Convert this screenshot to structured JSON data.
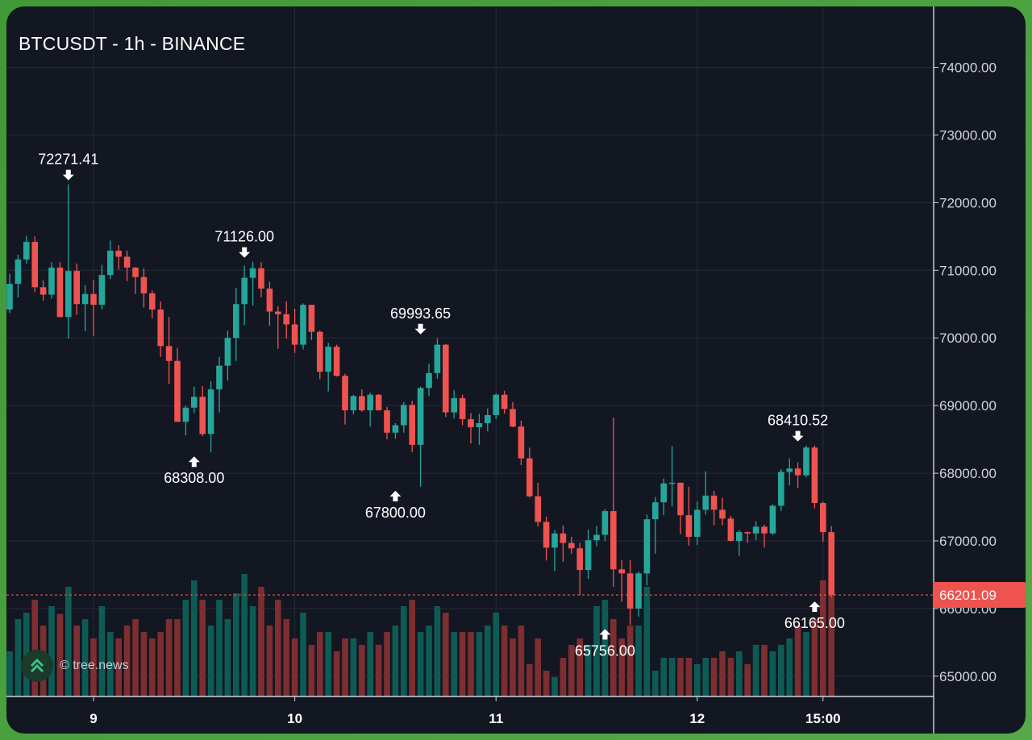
{
  "title": "BTCUSDT - 1h - BINANCE",
  "watermark": "© tree.news",
  "colors": {
    "background": "#131722",
    "grid": "#262b38",
    "up": "#26a69a",
    "down": "#ef5350",
    "up_volume": "#0e5b55",
    "down_volume": "#7c2e30",
    "price_line": "#ef5350",
    "text": "#ffffff",
    "axis_text": "#d1d4dc"
  },
  "chart_data": {
    "type": "candlestick",
    "interval": "1h",
    "ylim": [
      64200,
      74900
    ],
    "y_ticks": [
      "74000.00",
      "73000.00",
      "72000.00",
      "71000.00",
      "70000.00",
      "69000.00",
      "68000.00",
      "67000.00",
      "66000.00",
      "65000.00"
    ],
    "x_ticks": [
      {
        "label": "9",
        "index": 10
      },
      {
        "label": "10",
        "index": 34
      },
      {
        "label": "11",
        "index": 58
      },
      {
        "label": "12",
        "index": 82
      },
      {
        "label": "15:00",
        "index": 97
      }
    ],
    "last_price": "66201.09",
    "annotations": [
      {
        "label": "72271.41",
        "index": 7,
        "price": 72271.41,
        "dir": "high"
      },
      {
        "label": "71126.00",
        "index": 28,
        "price": 71126.0,
        "dir": "high"
      },
      {
        "label": "69993.65",
        "index": 49,
        "price": 69993.65,
        "dir": "high"
      },
      {
        "label": "68410.52",
        "index": 94,
        "price": 68410.52,
        "dir": "high"
      },
      {
        "label": "68308.00",
        "index": 22,
        "price": 68308.0,
        "dir": "low"
      },
      {
        "label": "67800.00",
        "index": 46,
        "price": 67800.0,
        "dir": "low"
      },
      {
        "label": "65756.00",
        "index": 71,
        "price": 65756.0,
        "dir": "low"
      },
      {
        "label": "66165.00",
        "index": 96,
        "price": 66165.0,
        "dir": "low"
      }
    ],
    "ohlc": [
      [
        70420,
        70950,
        70370,
        70800
      ],
      [
        70800,
        71230,
        70600,
        71160
      ],
      [
        71160,
        71510,
        71100,
        71420
      ],
      [
        71420,
        71500,
        70680,
        70750
      ],
      [
        70750,
        70850,
        70550,
        70640
      ],
      [
        70640,
        71120,
        70580,
        71040
      ],
      [
        71040,
        71120,
        70300,
        70310
      ],
      [
        70310,
        72271,
        69990,
        70990
      ],
      [
        70990,
        71100,
        70340,
        70500
      ],
      [
        70500,
        70780,
        70100,
        70650
      ],
      [
        70650,
        70860,
        70030,
        70490
      ],
      [
        70490,
        71080,
        70420,
        70930
      ],
      [
        70930,
        71440,
        70870,
        71290
      ],
      [
        71290,
        71370,
        71010,
        71200
      ],
      [
        71200,
        71290,
        70840,
        71040
      ],
      [
        71040,
        71050,
        70650,
        70900
      ],
      [
        70900,
        71030,
        70450,
        70660
      ],
      [
        70660,
        70700,
        70290,
        70420
      ],
      [
        70420,
        70540,
        69720,
        69880
      ],
      [
        69880,
        70310,
        69320,
        69660
      ],
      [
        69660,
        69850,
        68790,
        68760
      ],
      [
        68760,
        69000,
        68560,
        68970
      ],
      [
        68970,
        69280,
        68890,
        69130
      ],
      [
        69130,
        69290,
        68550,
        68580
      ],
      [
        68580,
        69360,
        68308,
        69240
      ],
      [
        69240,
        69720,
        68900,
        69590
      ],
      [
        69590,
        70110,
        69370,
        70000
      ],
      [
        70000,
        70740,
        69660,
        70500
      ],
      [
        70500,
        71070,
        70190,
        70890
      ],
      [
        70890,
        71126,
        70480,
        71030
      ],
      [
        71030,
        71120,
        70600,
        70730
      ],
      [
        70730,
        70830,
        70180,
        70390
      ],
      [
        70390,
        70470,
        69840,
        70350
      ],
      [
        70350,
        70540,
        69990,
        70200
      ],
      [
        70200,
        70430,
        69780,
        69900
      ],
      [
        69900,
        70510,
        69830,
        70490
      ],
      [
        70490,
        70490,
        69970,
        70090
      ],
      [
        70090,
        70110,
        69390,
        69500
      ],
      [
        69500,
        69930,
        69210,
        69870
      ],
      [
        69870,
        69900,
        69430,
        69440
      ],
      [
        69440,
        69470,
        68720,
        68930
      ],
      [
        68930,
        69160,
        68870,
        69140
      ],
      [
        69140,
        69240,
        68910,
        68930
      ],
      [
        68930,
        69190,
        68690,
        69160
      ],
      [
        69160,
        69170,
        68930,
        68930
      ],
      [
        68930,
        68980,
        68500,
        68600
      ],
      [
        68600,
        68740,
        68510,
        68710
      ],
      [
        68710,
        69050,
        68600,
        69010
      ],
      [
        69010,
        69070,
        68310,
        68420
      ],
      [
        68420,
        69280,
        67800,
        69260
      ],
      [
        69260,
        69620,
        69140,
        69480
      ],
      [
        69480,
        69994,
        69400,
        69900
      ],
      [
        69900,
        69910,
        68830,
        68900
      ],
      [
        68900,
        69230,
        68810,
        69110
      ],
      [
        69110,
        69160,
        68710,
        68800
      ],
      [
        68800,
        68890,
        68440,
        68680
      ],
      [
        68680,
        68880,
        68420,
        68740
      ],
      [
        68740,
        68960,
        68620,
        68860
      ],
      [
        68860,
        69180,
        68800,
        69160
      ],
      [
        69160,
        69220,
        68880,
        68950
      ],
      [
        68950,
        69050,
        68680,
        68690
      ],
      [
        68690,
        68780,
        68120,
        68220
      ],
      [
        68220,
        68380,
        67640,
        67660
      ],
      [
        67660,
        67860,
        67210,
        67280
      ],
      [
        67280,
        67360,
        66710,
        66900
      ],
      [
        66900,
        67160,
        66550,
        67110
      ],
      [
        67110,
        67230,
        66690,
        66970
      ],
      [
        66970,
        67060,
        66810,
        66890
      ],
      [
        66890,
        66970,
        66200,
        66570
      ],
      [
        66570,
        67170,
        66440,
        67010
      ],
      [
        67010,
        67220,
        66920,
        67090
      ],
      [
        67090,
        67470,
        67000,
        67440
      ],
      [
        67440,
        68820,
        66320,
        66580
      ],
      [
        66580,
        66720,
        66100,
        66520
      ],
      [
        66520,
        66720,
        65756,
        66000
      ],
      [
        66000,
        66550,
        65880,
        66520
      ],
      [
        66520,
        67390,
        66340,
        67320
      ],
      [
        67320,
        67650,
        66810,
        67570
      ],
      [
        67570,
        67920,
        67380,
        67850
      ],
      [
        67850,
        68400,
        67510,
        67860
      ],
      [
        67860,
        67860,
        67100,
        67380
      ],
      [
        67380,
        67800,
        66930,
        67060
      ],
      [
        67060,
        67580,
        66940,
        67460
      ],
      [
        67460,
        68030,
        67390,
        67670
      ],
      [
        67670,
        67740,
        67230,
        67460
      ],
      [
        67460,
        67640,
        67230,
        67330
      ],
      [
        67330,
        67370,
        66990,
        67000
      ],
      [
        67000,
        67160,
        66780,
        67130
      ],
      [
        67130,
        67140,
        66970,
        67110
      ],
      [
        67110,
        67290,
        67010,
        67210
      ],
      [
        67210,
        67240,
        66900,
        67110
      ],
      [
        67110,
        67540,
        67090,
        67520
      ],
      [
        67520,
        68060,
        67440,
        68020
      ],
      [
        68020,
        68220,
        67820,
        68070
      ],
      [
        68070,
        68160,
        67780,
        67970
      ],
      [
        67970,
        68410,
        67940,
        68380
      ],
      [
        68380,
        68410,
        67480,
        67560
      ],
      [
        67560,
        67580,
        66990,
        67130
      ],
      [
        67130,
        67220,
        66165,
        66201
      ]
    ],
    "volume": [
      35,
      60,
      65,
      75,
      55,
      70,
      64,
      85,
      55,
      60,
      45,
      70,
      50,
      45,
      55,
      60,
      50,
      45,
      50,
      60,
      60,
      75,
      90,
      75,
      55,
      75,
      60,
      80,
      95,
      70,
      85,
      55,
      75,
      60,
      45,
      65,
      40,
      50,
      50,
      35,
      45,
      45,
      40,
      50,
      40,
      50,
      55,
      70,
      75,
      50,
      55,
      70,
      65,
      50,
      50,
      50,
      50,
      55,
      65,
      55,
      45,
      55,
      25,
      45,
      20,
      15,
      30,
      40,
      45,
      40,
      70,
      75,
      60,
      45,
      55,
      55,
      85,
      20,
      30,
      30,
      30,
      30,
      25,
      30,
      30,
      35,
      30,
      35,
      25,
      40,
      40,
      35,
      40,
      45,
      55,
      50,
      60,
      90,
      80
    ]
  }
}
